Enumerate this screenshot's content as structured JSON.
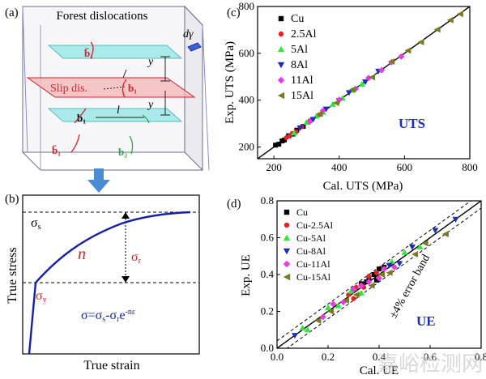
{
  "panels": {
    "a": {
      "label": "(a)",
      "title": "Forest dislocations",
      "dgamma": "dγ",
      "slip_label": "Slip dis.",
      "b1bar": "b̄₁",
      "b1": "b₁",
      "b2": "b₂",
      "y": "y",
      "l": "l"
    },
    "b": {
      "label": "(b)",
      "sigma_s": "σs",
      "sigma_y": "σy",
      "sigma_r": "σr",
      "n": "n",
      "equation": "σ=σs-σre-nε",
      "xlabel": "True strain",
      "ylabel": "True  stress"
    }
  },
  "colors": {
    "Cu": "#000000",
    "2.5Al": "#e8202a",
    "5Al": "#2ee83a",
    "8Al": "#1c2db6",
    "11Al": "#e83ae8",
    "15Al": "#7a7a20",
    "diag_blue": "#1c2db6",
    "slip_red": "#d2232a",
    "curve_blue": "#1422a6",
    "arrow_blue": "#4a8bd6"
  },
  "chart_data": [
    {
      "panel": "(c)",
      "type": "scatter",
      "title": "",
      "annotation": "UTS",
      "xlabel": "Cal. UTS (MPa)",
      "ylabel": "Exp. UTS (MPa)",
      "xlim": [
        150,
        800
      ],
      "ylim": [
        150,
        800
      ],
      "xticks": [
        200,
        400,
        600,
        800
      ],
      "yticks": [
        200,
        400,
        600,
        800
      ],
      "legend_position": "top-left",
      "series": [
        {
          "name": "Cu",
          "marker": "square",
          "points": [
            [
              205,
              208
            ],
            [
              215,
              212
            ],
            [
              225,
              226
            ],
            [
              232,
              230
            ],
            [
              245,
              248
            ],
            [
              258,
              255
            ],
            [
              270,
              272
            ],
            [
              290,
              288
            ]
          ]
        },
        {
          "name": "2.5Al",
          "marker": "circle",
          "points": [
            [
              238,
              240
            ],
            [
              248,
              246
            ],
            [
              256,
              258
            ],
            [
              268,
              265
            ],
            [
              285,
              286
            ],
            [
              310,
              312
            ],
            [
              340,
              338
            ]
          ]
        },
        {
          "name": "5Al",
          "marker": "triangle-up",
          "points": [
            [
              262,
              260
            ],
            [
              300,
              305
            ],
            [
              330,
              332
            ],
            [
              350,
              348
            ],
            [
              380,
              382
            ],
            [
              410,
              408
            ],
            [
              440,
              442
            ],
            [
              470,
              468
            ]
          ]
        },
        {
          "name": "8Al",
          "marker": "triangle-down",
          "points": [
            [
              280,
              282
            ],
            [
              320,
              318
            ],
            [
              360,
              362
            ],
            [
              400,
              398
            ],
            [
              430,
              432
            ],
            [
              480,
              478
            ],
            [
              520,
              524
            ]
          ]
        },
        {
          "name": "11Al",
          "marker": "diamond",
          "points": [
            [
              310,
              308
            ],
            [
              350,
              355
            ],
            [
              400,
              402
            ],
            [
              450,
              448
            ],
            [
              490,
              495
            ],
            [
              530,
              528
            ],
            [
              560,
              562
            ],
            [
              590,
              586
            ]
          ]
        },
        {
          "name": "15Al",
          "marker": "triangle-left",
          "points": [
            [
              340,
              342
            ],
            [
              390,
              388
            ],
            [
              440,
              445
            ],
            [
              500,
              498
            ],
            [
              560,
              565
            ],
            [
              610,
              612
            ],
            [
              650,
              648
            ],
            [
              700,
              702
            ],
            [
              740,
              742
            ],
            [
              770,
              768
            ]
          ]
        }
      ],
      "reference_line": "y = x"
    },
    {
      "panel": "(d)",
      "type": "scatter",
      "title": "",
      "annotation": "UE",
      "band_label": "±4% error band",
      "xlabel": "Cal. UE",
      "ylabel": "Exp. UE",
      "xlim": [
        0.0,
        0.8
      ],
      "ylim": [
        0.0,
        0.8
      ],
      "xticks": [
        0.0,
        0.2,
        0.4,
        0.6,
        0.8
      ],
      "yticks": [
        0.0,
        0.2,
        0.4,
        0.6,
        0.8
      ],
      "legend_position": "top-left",
      "series": [
        {
          "name": "Cu",
          "marker": "square",
          "points": [
            [
              0.33,
              0.35
            ],
            [
              0.36,
              0.38
            ],
            [
              0.38,
              0.4
            ],
            [
              0.4,
              0.43
            ],
            [
              0.35,
              0.36
            ],
            [
              0.42,
              0.44
            ],
            [
              0.39,
              0.37
            ]
          ]
        },
        {
          "name": "Cu-2.5Al",
          "marker": "circle",
          "points": [
            [
              0.28,
              0.29
            ],
            [
              0.31,
              0.33
            ],
            [
              0.34,
              0.33
            ],
            [
              0.36,
              0.39
            ],
            [
              0.3,
              0.27
            ],
            [
              0.39,
              0.41
            ]
          ]
        },
        {
          "name": "Cu-5Al",
          "marker": "triangle-up",
          "points": [
            [
              0.1,
              0.11
            ],
            [
              0.12,
              0.1
            ],
            [
              0.2,
              0.22
            ],
            [
              0.24,
              0.23
            ],
            [
              0.29,
              0.31
            ],
            [
              0.33,
              0.3
            ],
            [
              0.45,
              0.47
            ],
            [
              0.5,
              0.52
            ],
            [
              0.56,
              0.55
            ]
          ]
        },
        {
          "name": "Cu-8Al",
          "marker": "triangle-down",
          "points": [
            [
              0.07,
              0.07
            ],
            [
              0.44,
              0.45
            ],
            [
              0.48,
              0.46
            ],
            [
              0.53,
              0.55
            ],
            [
              0.62,
              0.64
            ],
            [
              0.7,
              0.7
            ]
          ]
        },
        {
          "name": "Cu-11Al",
          "marker": "diamond",
          "points": [
            [
              0.18,
              0.17
            ],
            [
              0.22,
              0.24
            ],
            [
              0.26,
              0.25
            ],
            [
              0.3,
              0.32
            ],
            [
              0.33,
              0.34
            ],
            [
              0.36,
              0.36
            ],
            [
              0.4,
              0.38
            ],
            [
              0.42,
              0.43
            ],
            [
              0.46,
              0.44
            ]
          ]
        },
        {
          "name": "Cu-15Al",
          "marker": "triangle-left",
          "points": [
            [
              0.16,
              0.15
            ],
            [
              0.21,
              0.2
            ],
            [
              0.27,
              0.26
            ],
            [
              0.31,
              0.29
            ],
            [
              0.37,
              0.34
            ],
            [
              0.41,
              0.4
            ],
            [
              0.44,
              0.41
            ],
            [
              0.54,
              0.51
            ],
            [
              0.58,
              0.57
            ],
            [
              0.66,
              0.62
            ]
          ]
        }
      ],
      "reference_line": "y = x",
      "error_band_lines": [
        0.04,
        -0.04
      ]
    }
  ],
  "watermark": "嘉峪检测网"
}
